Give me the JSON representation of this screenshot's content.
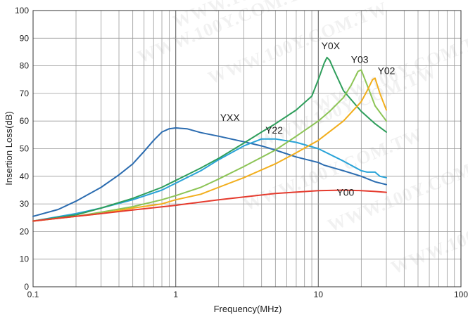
{
  "watermark": "WWW.100Y.COM.TW",
  "chart_data": {
    "type": "line",
    "xlabel": "Frequency(MHz)",
    "ylabel": "Insertion Loss(dB)",
    "xscale": "log",
    "xlim": [
      0.1,
      100
    ],
    "ylim": [
      0,
      100
    ],
    "x_ticks": [
      "0.1",
      "1",
      "10",
      "100"
    ],
    "y_ticks": [
      "0",
      "10",
      "20",
      "30",
      "40",
      "50",
      "60",
      "70",
      "80",
      "90",
      "100"
    ],
    "grid": true,
    "legend": "inline labels",
    "series": [
      {
        "name": "YXX",
        "color": "#2b6cb0",
        "points": [
          [
            0.1,
            25.5
          ],
          [
            0.15,
            28
          ],
          [
            0.2,
            31
          ],
          [
            0.3,
            36
          ],
          [
            0.4,
            40.5
          ],
          [
            0.5,
            44.5
          ],
          [
            0.6,
            49
          ],
          [
            0.7,
            53
          ],
          [
            0.8,
            56
          ],
          [
            0.9,
            57.2
          ],
          [
            1.0,
            57.5
          ],
          [
            1.2,
            57.2
          ],
          [
            1.5,
            55.8
          ],
          [
            2,
            54.5
          ],
          [
            3,
            52.5
          ],
          [
            4,
            51
          ],
          [
            5,
            49.5
          ],
          [
            7,
            47
          ],
          [
            10,
            45
          ],
          [
            11,
            44
          ],
          [
            15,
            42
          ],
          [
            20,
            40
          ],
          [
            25,
            38
          ],
          [
            30,
            37
          ]
        ]
      },
      {
        "name": "Y22",
        "color": "#29a3d8",
        "points": [
          [
            0.1,
            23.8
          ],
          [
            0.2,
            26.5
          ],
          [
            0.3,
            28.5
          ],
          [
            0.5,
            31.5
          ],
          [
            0.8,
            35
          ],
          [
            1,
            37.5
          ],
          [
            1.5,
            42
          ],
          [
            2,
            46
          ],
          [
            3,
            51
          ],
          [
            4,
            53.5
          ],
          [
            5,
            53.5
          ],
          [
            7,
            52.3
          ],
          [
            10,
            50
          ],
          [
            15,
            45.5
          ],
          [
            20,
            42
          ],
          [
            22,
            41.5
          ],
          [
            25,
            41.5
          ],
          [
            27,
            40
          ],
          [
            30,
            39.5
          ]
        ]
      },
      {
        "name": "Y0X",
        "color": "#2e9e5b",
        "points": [
          [
            0.1,
            23.8
          ],
          [
            0.2,
            26
          ],
          [
            0.3,
            28.5
          ],
          [
            0.5,
            32
          ],
          [
            0.8,
            36
          ],
          [
            1,
            38.5
          ],
          [
            1.5,
            43
          ],
          [
            2,
            46.5
          ],
          [
            3,
            52
          ],
          [
            4,
            56
          ],
          [
            5,
            59
          ],
          [
            7,
            64
          ],
          [
            9,
            69
          ],
          [
            10,
            75
          ],
          [
            11,
            81
          ],
          [
            11.5,
            83
          ],
          [
            12,
            82
          ],
          [
            13,
            78
          ],
          [
            15,
            71
          ],
          [
            20,
            63.5
          ],
          [
            25,
            59
          ],
          [
            30,
            56
          ]
        ]
      },
      {
        "name": "Y03",
        "color": "#8cc455",
        "points": [
          [
            0.1,
            23.8
          ],
          [
            0.2,
            25.5
          ],
          [
            0.3,
            27
          ],
          [
            0.5,
            29
          ],
          [
            0.8,
            31.5
          ],
          [
            1,
            33
          ],
          [
            1.5,
            36
          ],
          [
            2,
            39
          ],
          [
            3,
            43.5
          ],
          [
            5,
            49.5
          ],
          [
            7,
            54.5
          ],
          [
            10,
            60
          ],
          [
            12,
            63.5
          ],
          [
            15,
            68.5
          ],
          [
            17,
            73
          ],
          [
            19,
            78
          ],
          [
            20,
            78.5
          ],
          [
            22,
            73
          ],
          [
            25,
            65.5
          ],
          [
            30,
            60
          ]
        ]
      },
      {
        "name": "Y02",
        "color": "#f2ae1c",
        "points": [
          [
            0.1,
            23.8
          ],
          [
            0.2,
            25.5
          ],
          [
            0.3,
            26.5
          ],
          [
            0.5,
            28.5
          ],
          [
            0.8,
            30
          ],
          [
            1,
            31.5
          ],
          [
            1.5,
            33.5
          ],
          [
            2,
            36
          ],
          [
            3,
            39.5
          ],
          [
            5,
            44.5
          ],
          [
            7,
            48.5
          ],
          [
            10,
            53
          ],
          [
            15,
            60
          ],
          [
            20,
            67
          ],
          [
            22,
            71
          ],
          [
            24,
            75
          ],
          [
            25,
            75.5
          ],
          [
            27,
            70
          ],
          [
            30,
            64
          ]
        ]
      },
      {
        "name": "Y00",
        "color": "#e53b2e",
        "points": [
          [
            0.1,
            23.8
          ],
          [
            0.2,
            25.5
          ],
          [
            0.3,
            26.5
          ],
          [
            0.5,
            27.8
          ],
          [
            1,
            29.5
          ],
          [
            2,
            31.5
          ],
          [
            3,
            32.5
          ],
          [
            5,
            33.8
          ],
          [
            10,
            34.8
          ],
          [
            15,
            35
          ],
          [
            20,
            34.8
          ],
          [
            25,
            34.5
          ],
          [
            30,
            34.2
          ]
        ]
      }
    ],
    "label_anchors": {
      "YXX": [
        2.4,
        60
      ],
      "Y22": [
        4.9,
        55.5
      ],
      "Y0X": [
        12.2,
        86
      ],
      "Y03": [
        19.5,
        81
      ],
      "Y02": [
        30,
        77
      ],
      "Y00": [
        15.5,
        33
      ]
    }
  }
}
